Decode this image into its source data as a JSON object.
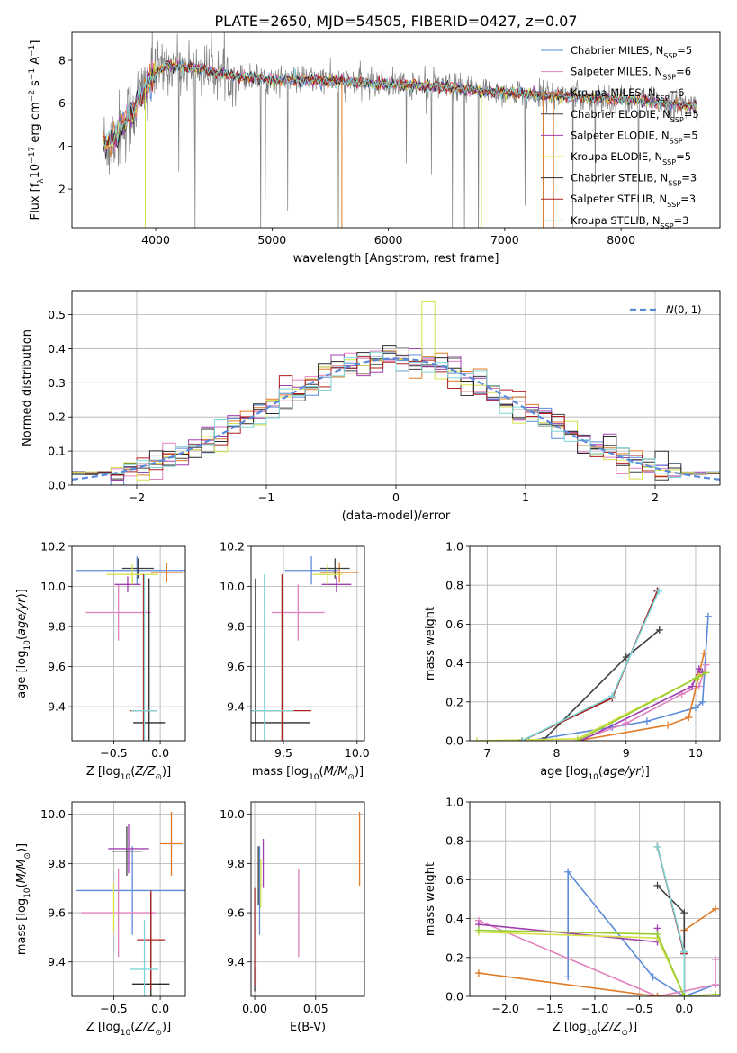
{
  "figure": {
    "title": "PLATE=2650, MJD=54505, FIBERID=0427, z=0.07"
  },
  "chart_data": [
    {
      "id": "spectrum",
      "type": "line",
      "xlabel": "wavelength [Angstrom, rest frame]",
      "ylabel": "Flux [f_λ 10^-17 erg cm^-2 s^-1 A^-1]",
      "xlim": [
        3280,
        8850
      ],
      "ylim": [
        0.2,
        9.3
      ],
      "xticks": [
        "4000",
        "5000",
        "6000",
        "7000",
        "8000"
      ],
      "yticks": [
        "2",
        "4",
        "6",
        "8"
      ],
      "data_color": "#808080",
      "data_trend": {
        "x": [
          3550,
          3650,
          3800,
          3900,
          4000,
          4100,
          4200,
          4400,
          4600,
          4800,
          5000,
          5300,
          5600,
          6000,
          6400,
          6800,
          7200,
          7600,
          8000,
          8300,
          8600
        ],
        "y": [
          4.0,
          4.4,
          5.6,
          6.6,
          7.4,
          7.8,
          7.7,
          7.6,
          7.3,
          7.2,
          7.1,
          7.1,
          7.0,
          6.9,
          6.8,
          6.6,
          6.4,
          6.3,
          6.2,
          6.0,
          5.9
        ]
      },
      "legend": {
        "placement": "top-right",
        "entries": [
          {
            "label": "Chabrier MILES, N_SSP=5",
            "color": "#5b8ad9"
          },
          {
            "label": "Salpeter MILES, N_SSP=6",
            "color": "#e27fbe"
          },
          {
            "label": "Kroupa MILES, N_SSP=6",
            "color": "#e07b27"
          },
          {
            "label": "Chabrier ELODIE, N_SSP=5",
            "color": "#3f3f3f"
          },
          {
            "label": "Salpeter ELODIE, N_SSP=5",
            "color": "#a040b0"
          },
          {
            "label": "Kroupa ELODIE, N_SSP=5",
            "color": "#d6e04a"
          },
          {
            "label": "Chabrier STELIB, N_SSP=3",
            "color": "#2a2a2a"
          },
          {
            "label": "Salpeter STELIB, N_SSP=3",
            "color": "#b02020"
          },
          {
            "label": "Kroupa STELIB, N_SSP=3",
            "color": "#7fd6d6"
          }
        ]
      }
    },
    {
      "id": "residual_histogram",
      "type": "line",
      "xlabel": "(data-model)/error",
      "ylabel": "Normed distribution",
      "xlim": [
        -2.5,
        2.5
      ],
      "ylim": [
        0.0,
        0.57
      ],
      "xticks": [
        "−2",
        "−1",
        "0",
        "1",
        "2"
      ],
      "yticks": [
        "0.0",
        "0.1",
        "0.2",
        "0.3",
        "0.4",
        "0.5"
      ],
      "grid": true,
      "legend": {
        "placement": "top-right",
        "entries": [
          {
            "label": "N(0,1)",
            "color": "#5b8ad9",
            "style": "dashed"
          }
        ]
      },
      "bin_width": 0.1,
      "bin_start": -2.5,
      "normal_curve": {
        "mean": 0,
        "sigma": 1,
        "scale": 0.93
      },
      "highlight_bin": {
        "x0": 0.2,
        "x1": 0.3,
        "value": 0.54,
        "color": "#d6e04a"
      }
    },
    {
      "id": "age_vs_Z",
      "type": "scatter",
      "xlabel": "Z [log10(Z/Z⊙)]",
      "ylabel": "age  [log10(age/yr)]",
      "xlim": [
        -0.95,
        0.27
      ],
      "ylim": [
        9.23,
        10.2
      ],
      "xticks": [
        "−0.5",
        "0.0"
      ],
      "yticks": [
        "9.4",
        "9.6",
        "9.8",
        "10.0",
        "10.2"
      ],
      "grid": true,
      "points": [
        {
          "model": "Chabrier MILES",
          "color": "#5b8ad9",
          "x": -0.25,
          "y": 10.08,
          "xerr": 0.65,
          "yerr": 0.07
        },
        {
          "model": "Salpeter MILES",
          "color": "#e27fbe",
          "x": -0.45,
          "y": 9.87,
          "xerr": 0.35,
          "yerr": 0.14
        },
        {
          "model": "Kroupa MILES",
          "color": "#e07b27",
          "x": 0.07,
          "y": 10.07,
          "xerr": 0.17,
          "yerr": 0.05
        },
        {
          "model": "Chabrier ELODIE",
          "color": "#3f3f3f",
          "x": -0.24,
          "y": 10.09,
          "xerr": 0.17,
          "yerr": 0.05
        },
        {
          "model": "Salpeter ELODIE",
          "color": "#a040b0",
          "x": -0.35,
          "y": 10.01,
          "xerr": 0.14,
          "yerr": 0.04
        },
        {
          "model": "Kroupa ELODIE",
          "color": "#d6e04a",
          "x": -0.3,
          "y": 10.06,
          "xerr": 0.28,
          "yerr": 0.05
        },
        {
          "model": "Chabrier STELIB",
          "color": "#2a2a2a",
          "x": -0.12,
          "y": 9.32,
          "xerr": 0.17,
          "yerr": 0.72
        },
        {
          "model": "Salpeter STELIB",
          "color": "#b02020",
          "x": -0.18,
          "y": 9.38,
          "xerr": 0.14,
          "yerr": 0.68
        },
        {
          "model": "Kroupa STELIB",
          "color": "#7fd6d6",
          "x": -0.17,
          "y": 9.38,
          "xerr": 0.14,
          "yerr": 0.68
        }
      ]
    },
    {
      "id": "age_vs_mass",
      "type": "scatter",
      "xlabel": "mass [log10(M/M⊙)]",
      "ylabel": "",
      "xlim": [
        9.28,
        10.05
      ],
      "ylim": [
        9.23,
        10.2
      ],
      "xticks": [
        "9.5",
        "10.0"
      ],
      "yticks": [
        "9.4",
        "9.6",
        "9.8",
        "10.0",
        "10.2"
      ],
      "grid": true,
      "points": [
        {
          "model": "Chabrier MILES",
          "color": "#5b8ad9",
          "x": 9.69,
          "y": 10.08,
          "xerr": 0.18,
          "yerr": 0.07
        },
        {
          "model": "Salpeter MILES",
          "color": "#e27fbe",
          "x": 9.6,
          "y": 9.87,
          "xerr": 0.18,
          "yerr": 0.14
        },
        {
          "model": "Kroupa MILES",
          "color": "#e07b27",
          "x": 9.88,
          "y": 10.07,
          "xerr": 0.13,
          "yerr": 0.05
        },
        {
          "model": "Chabrier ELODIE",
          "color": "#3f3f3f",
          "x": 9.85,
          "y": 10.09,
          "xerr": 0.1,
          "yerr": 0.05
        },
        {
          "model": "Salpeter ELODIE",
          "color": "#a040b0",
          "x": 9.86,
          "y": 10.01,
          "xerr": 0.1,
          "yerr": 0.04
        },
        {
          "model": "Kroupa ELODIE",
          "color": "#d6e04a",
          "x": 9.8,
          "y": 10.06,
          "xerr": 0.1,
          "yerr": 0.05
        },
        {
          "model": "Chabrier STELIB",
          "color": "#2a2a2a",
          "x": 9.31,
          "y": 9.32,
          "xerr": 0.37,
          "yerr": 0.72
        },
        {
          "model": "Salpeter STELIB",
          "color": "#b02020",
          "x": 9.49,
          "y": 9.38,
          "xerr": 0.2,
          "yerr": 0.68
        },
        {
          "model": "Kroupa STELIB",
          "color": "#7fd6d6",
          "x": 9.37,
          "y": 9.38,
          "xerr": 0.2,
          "yerr": 0.68
        }
      ]
    },
    {
      "id": "mass_weight_vs_age",
      "type": "line",
      "xlabel": "age  [log10(age/yr)]",
      "ylabel": "mass weight",
      "xlim": [
        6.75,
        10.35
      ],
      "ylim": [
        0.0,
        1.0
      ],
      "xticks": [
        "7",
        "8",
        "9",
        "10"
      ],
      "yticks": [
        "0.0",
        "0.2",
        "0.4",
        "0.6",
        "0.8",
        "1.0"
      ],
      "grid": true,
      "series": [
        {
          "model": "Chabrier MILES",
          "color": "#5b8ad9",
          "x": [
            7.6,
            8.8,
            9.3,
            10.0,
            10.1,
            10.18
          ],
          "y": [
            0.0,
            0.07,
            0.1,
            0.17,
            0.2,
            0.64
          ]
        },
        {
          "model": "Salpeter MILES",
          "color": "#e27fbe",
          "x": [
            8.3,
            9.0,
            9.8,
            10.05,
            10.15
          ],
          "y": [
            0.0,
            0.09,
            0.24,
            0.28,
            0.39
          ]
        },
        {
          "model": "Kroupa MILES",
          "color": "#e07b27",
          "x": [
            8.3,
            9.6,
            9.9,
            10.05,
            10.12
          ],
          "y": [
            0.0,
            0.08,
            0.12,
            0.34,
            0.45
          ]
        },
        {
          "model": "Chabrier ELODIE",
          "color": "#3f3f3f",
          "x": [
            7.8,
            9.0,
            9.48
          ],
          "y": [
            0.0,
            0.43,
            0.57
          ]
        },
        {
          "model": "Salpeter ELODIE",
          "color": "#a040b0",
          "x": [
            8.35,
            9.95,
            10.05,
            10.1
          ],
          "y": [
            0.0,
            0.28,
            0.37,
            0.35
          ]
        },
        {
          "model": "Kroupa ELODIE",
          "color": "#d6e04a",
          "x": [
            6.85,
            8.3,
            10.05,
            10.15
          ],
          "y": [
            0.0,
            0.01,
            0.33,
            0.35
          ]
        },
        {
          "model": "Chabrier STELIB",
          "color": "#2a2a2a",
          "x": [
            7.5,
            8.8,
            9.45
          ],
          "y": [
            0.0,
            0.22,
            0.77
          ]
        },
        {
          "model": "Salpeter STELIB",
          "color": "#b02020",
          "x": [
            7.5,
            8.8,
            9.45
          ],
          "y": [
            0.0,
            0.22,
            0.77
          ]
        },
        {
          "model": "Kroupa STELIB",
          "color": "#7fd6d6",
          "x": [
            7.5,
            8.8,
            9.47
          ],
          "y": [
            0.0,
            0.23,
            0.77
          ]
        },
        {
          "model": "Kroupa ELODIE b",
          "color": "#9acd32",
          "x": [
            8.3,
            10.0,
            10.15
          ],
          "y": [
            0.0,
            0.32,
            0.35
          ]
        }
      ]
    },
    {
      "id": "mass_vs_Z",
      "type": "scatter",
      "xlabel": "Z [log10(Z/Z⊙)]",
      "ylabel": "mass [log10(M/M⊙)]",
      "xlim": [
        -0.95,
        0.27
      ],
      "ylim": [
        9.26,
        10.05
      ],
      "xticks": [
        "−0.5",
        "0.0"
      ],
      "yticks": [
        "9.4",
        "9.6",
        "9.8",
        "10.0"
      ],
      "grid": true,
      "points": [
        {
          "model": "Chabrier MILES",
          "color": "#5b8ad9",
          "x": -0.3,
          "y": 9.69,
          "xerr": 0.6,
          "yerr": 0.18
        },
        {
          "model": "Salpeter MILES",
          "color": "#e27fbe",
          "x": -0.45,
          "y": 9.6,
          "xerr": 0.4,
          "yerr": 0.18
        },
        {
          "model": "Kroupa MILES",
          "color": "#e07b27",
          "x": 0.12,
          "y": 9.88,
          "xerr": 0.12,
          "yerr": 0.13
        },
        {
          "model": "Chabrier ELODIE",
          "color": "#3f3f3f",
          "x": -0.36,
          "y": 9.85,
          "xerr": 0.16,
          "yerr": 0.1
        },
        {
          "model": "Salpeter ELODIE",
          "color": "#a040b0",
          "x": -0.34,
          "y": 9.86,
          "xerr": 0.22,
          "yerr": 0.1
        },
        {
          "model": "Kroupa ELODIE",
          "color": "#d6e04a",
          "x": -0.5,
          "y": 9.62,
          "xerr": 0.0,
          "yerr": 0.1
        },
        {
          "model": "Chabrier STELIB",
          "color": "#2a2a2a",
          "x": -0.1,
          "y": 9.31,
          "xerr": 0.2,
          "yerr": 0.37
        },
        {
          "model": "Salpeter STELIB",
          "color": "#b02020",
          "x": -0.1,
          "y": 9.49,
          "xerr": 0.15,
          "yerr": 0.2
        },
        {
          "model": "Kroupa STELIB",
          "color": "#7fd6d6",
          "x": -0.17,
          "y": 9.37,
          "xerr": 0.15,
          "yerr": 0.2
        }
      ]
    },
    {
      "id": "mass_vs_ebv",
      "type": "scatter",
      "xlabel": "E(B-V)",
      "ylabel": "",
      "xlim": [
        -0.003,
        0.09
      ],
      "ylim": [
        9.26,
        10.05
      ],
      "xticks": [
        "0.00",
        "0.05"
      ],
      "yticks": [
        "9.4",
        "9.6",
        "9.8",
        "10.0"
      ],
      "grid": true,
      "points": [
        {
          "model": "Chabrier MILES",
          "color": "#5b8ad9",
          "x": 0.004,
          "y": 9.69,
          "xerr": 0.0,
          "yerr": 0.18
        },
        {
          "model": "Salpeter MILES",
          "color": "#e27fbe",
          "x": 0.036,
          "y": 9.6,
          "xerr": 0.0,
          "yerr": 0.18
        },
        {
          "model": "Kroupa MILES",
          "color": "#e07b27",
          "x": 0.086,
          "y": 9.86,
          "xerr": 0.0,
          "yerr": 0.15
        },
        {
          "model": "Chabrier ELODIE",
          "color": "#3f3f3f",
          "x": 0.003,
          "y": 9.75,
          "xerr": 0.0,
          "yerr": 0.12
        },
        {
          "model": "Salpeter ELODIE",
          "color": "#a040b0",
          "x": 0.007,
          "y": 9.8,
          "xerr": 0.0,
          "yerr": 0.1
        },
        {
          "model": "Kroupa ELODIE",
          "color": "#d6e04a",
          "x": 0.005,
          "y": 9.72,
          "xerr": 0.0,
          "yerr": 0.1
        },
        {
          "model": "Chabrier STELIB",
          "color": "#2a2a2a",
          "x": 0.0,
          "y": 9.33,
          "xerr": 0.0,
          "yerr": 0.05
        },
        {
          "model": "Salpeter STELIB",
          "color": "#b02020",
          "x": 0.0,
          "y": 9.5,
          "xerr": 0.0,
          "yerr": 0.2
        },
        {
          "model": "Kroupa STELIB",
          "color": "#7fd6d6",
          "x": 0.001,
          "y": 9.5,
          "xerr": 0.0,
          "yerr": 0.2
        }
      ]
    },
    {
      "id": "mass_weight_vs_Z",
      "type": "line",
      "xlabel": "Z [log10(Z/Z⊙)]",
      "ylabel": "mass weight",
      "xlim": [
        -2.4,
        0.4
      ],
      "ylim": [
        0.0,
        1.0
      ],
      "xticks": [
        "−2.0",
        "−1.5",
        "−1.0",
        "−0.5",
        "0.0"
      ],
      "yticks": [
        "0.0",
        "0.2",
        "0.4",
        "0.6",
        "0.8",
        "1.0"
      ],
      "grid": true,
      "series": [
        {
          "model": "Chabrier MILES",
          "color": "#5b8ad9",
          "x": [
            -1.3,
            -1.3,
            -0.35,
            0.0,
            0.35
          ],
          "y": [
            0.1,
            0.64,
            0.1,
            0.0,
            0.06
          ]
        },
        {
          "model": "Salpeter MILES",
          "color": "#e27fbe",
          "x": [
            -2.3,
            -0.3,
            0.35,
            0.35
          ],
          "y": [
            0.39,
            0.0,
            0.06,
            0.19
          ]
        },
        {
          "model": "Kroupa MILES",
          "color": "#e07b27",
          "x": [
            -2.3,
            -0.3,
            0.0,
            0.0,
            0.35
          ],
          "y": [
            0.12,
            0.0,
            0.0,
            0.34,
            0.45
          ]
        },
        {
          "model": "Chabrier ELODIE",
          "color": "#3f3f3f",
          "x": [
            -0.3,
            0.0,
            0.0
          ],
          "y": [
            0.57,
            0.43,
            0.22
          ]
        },
        {
          "model": "Salpeter ELODIE",
          "color": "#a040b0",
          "x": [
            -2.3,
            -0.3,
            -0.3
          ],
          "y": [
            0.37,
            0.28,
            0.35
          ]
        },
        {
          "model": "Kroupa ELODIE",
          "color": "#d6e04a",
          "x": [
            -2.3,
            -0.3,
            0.0,
            0.35
          ],
          "y": [
            0.33,
            0.3,
            0.0,
            0.01
          ]
        },
        {
          "model": "Chabrier STELIB",
          "color": "#2a2a2a",
          "x": [
            -0.3,
            0.0,
            0.0
          ],
          "y": [
            0.77,
            0.22,
            0.0
          ]
        },
        {
          "model": "Salpeter STELIB",
          "color": "#b02020",
          "x": [
            -0.3,
            0.0,
            0.0
          ],
          "y": [
            0.77,
            0.22,
            0.0
          ]
        },
        {
          "model": "Kroupa STELIB",
          "color": "#7fd6d6",
          "x": [
            -0.3,
            0.0,
            0.0
          ],
          "y": [
            0.77,
            0.23,
            0.0
          ]
        },
        {
          "model": "Kroupa ELODIE b",
          "color": "#9acd32",
          "x": [
            -2.3,
            -0.3,
            0.0,
            0.35
          ],
          "y": [
            0.34,
            0.32,
            0.0,
            0.01
          ]
        }
      ]
    }
  ]
}
